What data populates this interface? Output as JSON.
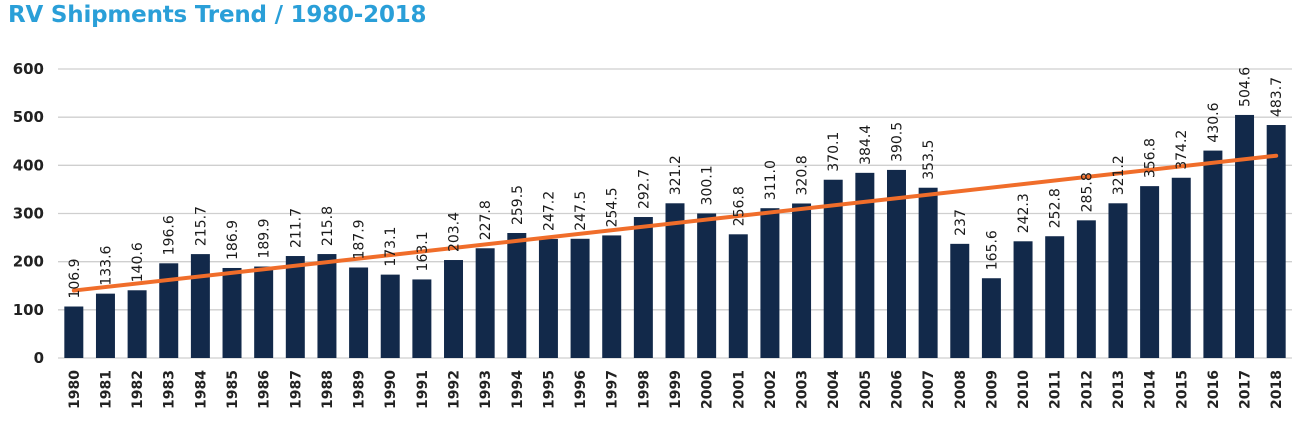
{
  "chart_data": {
    "type": "bar",
    "title": "RV Shipments Trend / 1980-2018",
    "categories": [
      "1980",
      "1981",
      "1982",
      "1983",
      "1984",
      "1985",
      "1986",
      "1987",
      "1988",
      "1989",
      "1990",
      "1991",
      "1992",
      "1993",
      "1994",
      "1995",
      "1996",
      "1997",
      "1998",
      "1999",
      "2000",
      "2001",
      "2002",
      "2003",
      "2004",
      "2005",
      "2006",
      "2007",
      "2008",
      "2009",
      "2010",
      "2011",
      "2012",
      "2013",
      "2014",
      "2015",
      "2016",
      "2017",
      "2018"
    ],
    "values": [
      106.9,
      133.6,
      140.6,
      196.6,
      215.7,
      186.9,
      189.9,
      211.7,
      215.8,
      187.9,
      173.1,
      163.1,
      203.4,
      227.8,
      259.5,
      247.2,
      247.5,
      254.5,
      292.7,
      321.2,
      300.1,
      256.8,
      311.0,
      320.8,
      370.1,
      384.4,
      390.5,
      353.5,
      237,
      165.6,
      242.3,
      252.8,
      285.8,
      321.2,
      356.8,
      374.2,
      430.6,
      504.6,
      483.7
    ],
    "value_labels": [
      "106.9",
      "133.6",
      "140.6",
      "196.6",
      "215.7",
      "186.9",
      "189.9",
      "211.7",
      "215.8",
      "187.9",
      "173.1",
      "163.1",
      "203.4",
      "227.8",
      "259.5",
      "247.2",
      "247.5",
      "254.5",
      "292.7",
      "321.2",
      "300.1",
      "256.8",
      "311.0",
      "320.8",
      "370.1",
      "384.4",
      "390.5",
      "353.5",
      "237",
      "165.6",
      "242.3",
      "252.8",
      "285.8",
      "321.2",
      "356.8",
      "374.2",
      "430.6",
      "504.6",
      "483.7"
    ],
    "yticks": [
      "0",
      "100",
      "200",
      "300",
      "400",
      "500",
      "600"
    ],
    "ylim": [
      0,
      600
    ],
    "grid": true,
    "trendline": {
      "start": 140,
      "end": 420
    },
    "colors": {
      "bar": "#12294a",
      "trend": "#f06d2a",
      "title": "#2a9fd8",
      "grid": "#cfcfcf"
    }
  }
}
